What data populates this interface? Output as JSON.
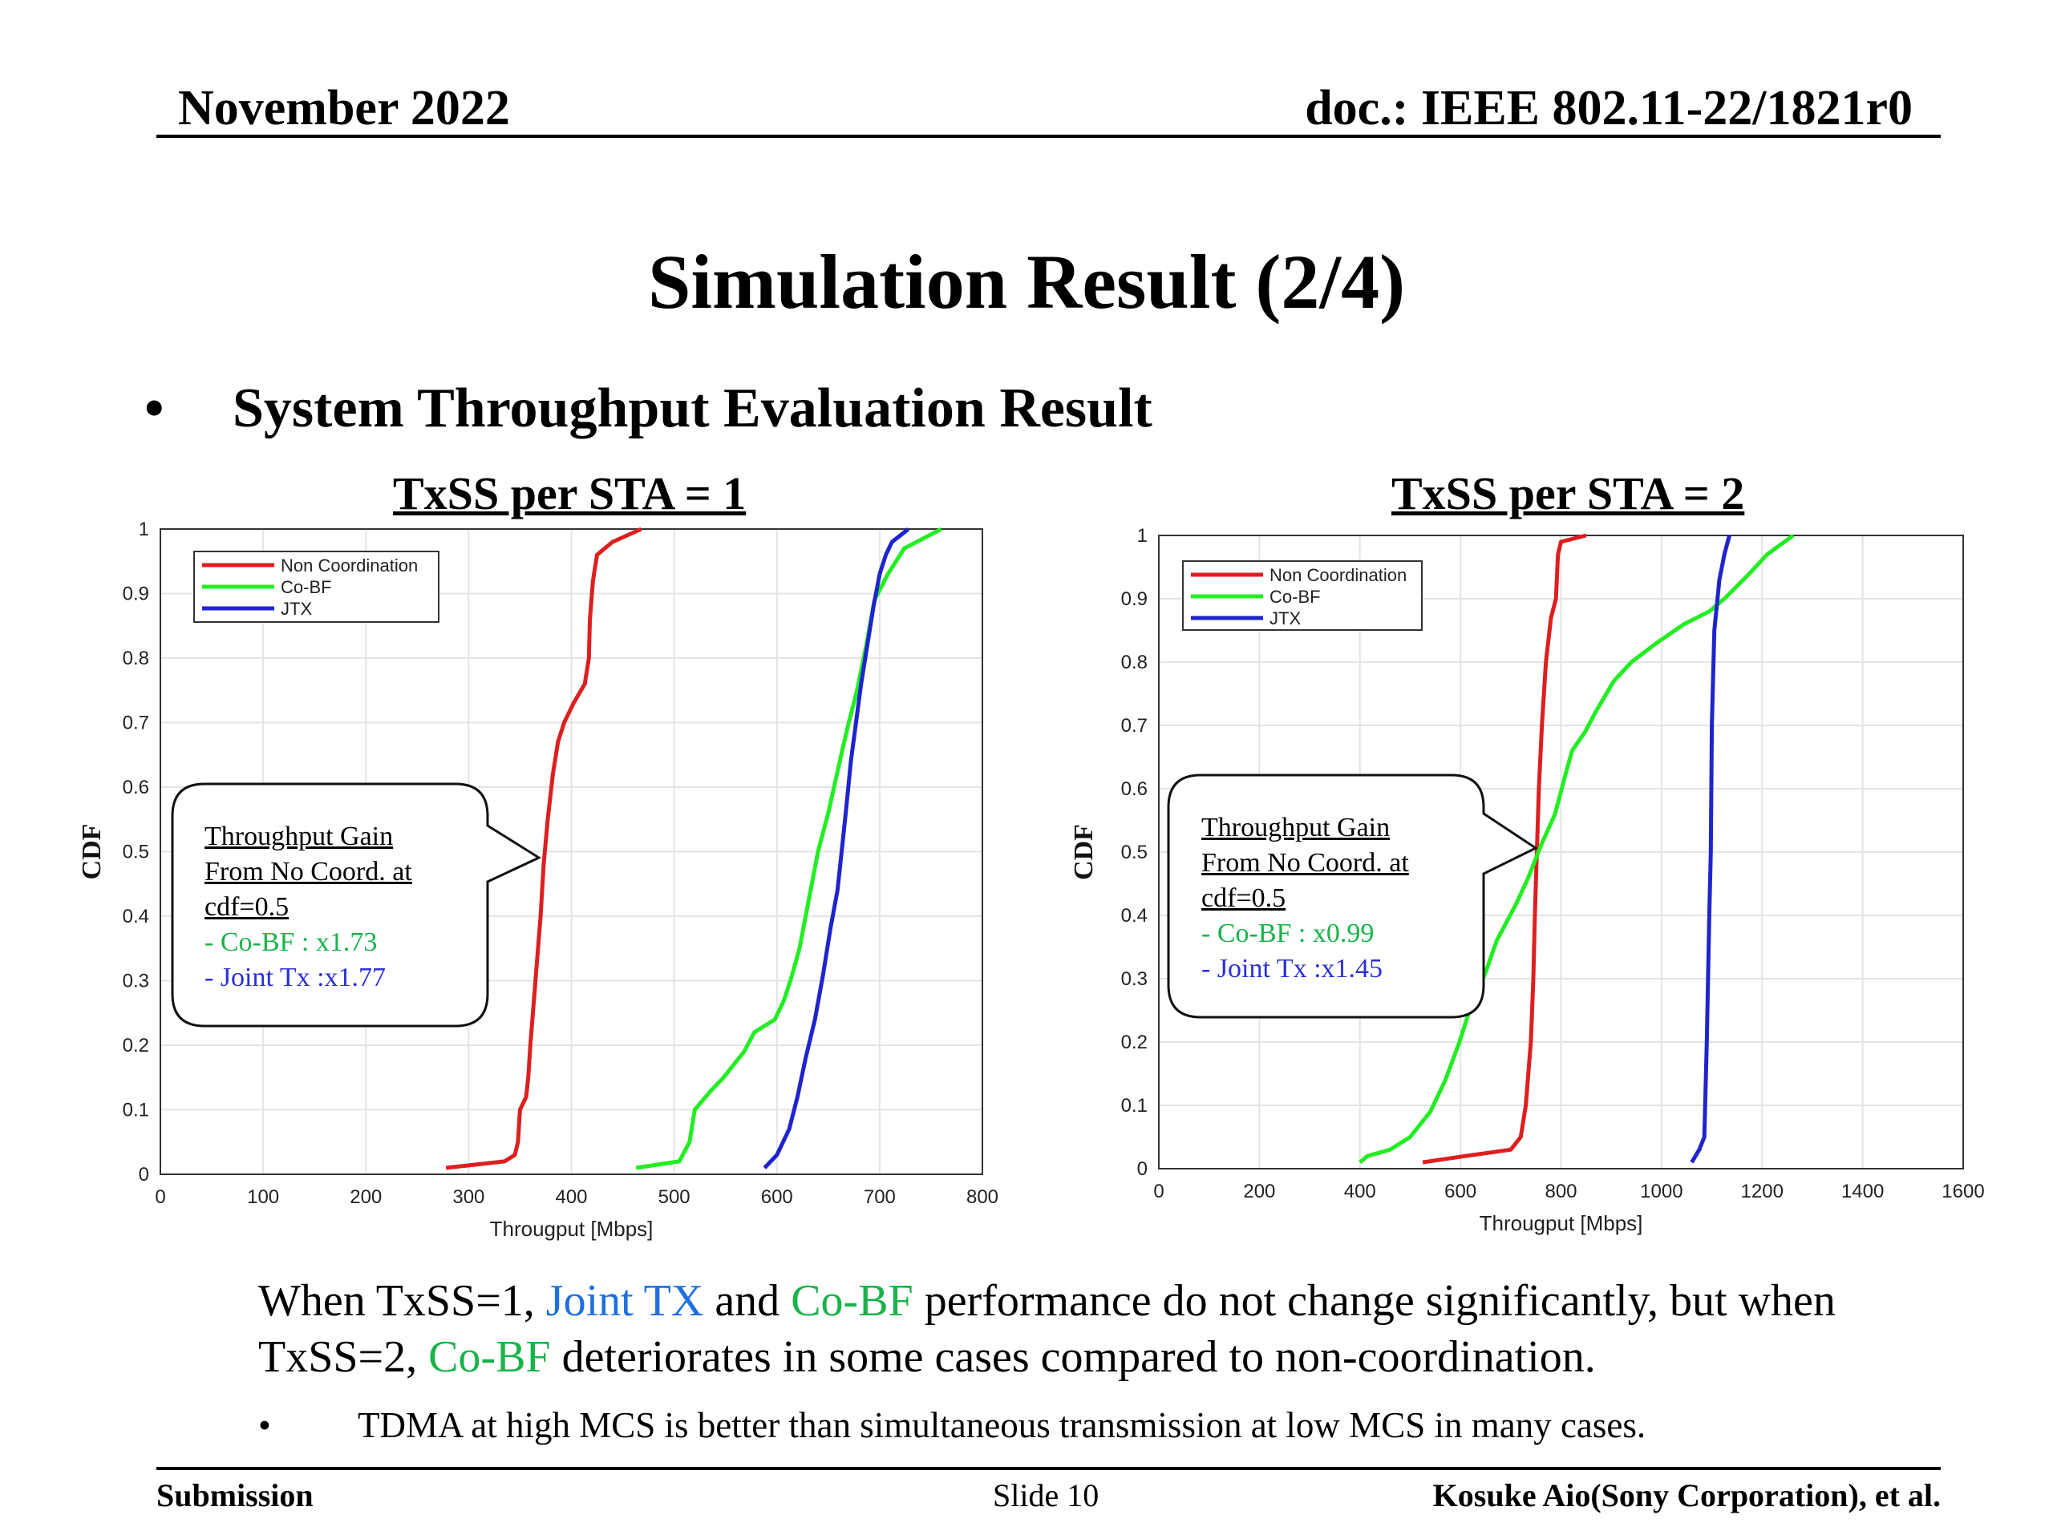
{
  "header": {
    "date": "November 2022",
    "doc": "doc.: IEEE 802.11-22/1821r0"
  },
  "title": "Simulation Result (2/4)",
  "bullet": {
    "glyph": "•",
    "text": "System Throughput Evaluation Result"
  },
  "chart_data": [
    {
      "type": "line",
      "title": "TxSS per STA  = 1",
      "xlabel": "Througput [Mbps]",
      "ylabel": "CDF",
      "xlim": [
        0,
        800
      ],
      "ylim": [
        0,
        1
      ],
      "xticks": [
        0,
        100,
        200,
        300,
        400,
        500,
        600,
        700,
        800
      ],
      "yticks": [
        0,
        0.1,
        0.2,
        0.3,
        0.4,
        0.5,
        0.6,
        0.7,
        0.8,
        0.9,
        1
      ],
      "grid": true,
      "legend": "top-left",
      "series": [
        {
          "name": "Non Coordination",
          "color": "#dd1f1f",
          "points": [
            [
              278,
              0.01
            ],
            [
              335,
              0.02
            ],
            [
              345,
              0.03
            ],
            [
              348,
              0.05
            ],
            [
              350,
              0.1
            ],
            [
              356,
              0.12
            ],
            [
              358,
              0.15
            ],
            [
              360,
              0.2
            ],
            [
              365,
              0.3
            ],
            [
              370,
              0.4
            ],
            [
              373,
              0.48
            ],
            [
              377,
              0.55
            ],
            [
              382,
              0.62
            ],
            [
              387,
              0.67
            ],
            [
              393,
              0.7
            ],
            [
              402,
              0.73
            ],
            [
              413,
              0.76
            ],
            [
              417,
              0.8
            ],
            [
              418,
              0.86
            ],
            [
              421,
              0.92
            ],
            [
              425,
              0.96
            ],
            [
              440,
              0.98
            ],
            [
              468,
              1.0
            ]
          ]
        },
        {
          "name": "Co-BF",
          "color": "#22ee22",
          "points": [
            [
              463,
              0.01
            ],
            [
              505,
              0.02
            ],
            [
              515,
              0.05
            ],
            [
              520,
              0.1
            ],
            [
              536,
              0.13
            ],
            [
              548,
              0.15
            ],
            [
              568,
              0.19
            ],
            [
              578,
              0.22
            ],
            [
              598,
              0.24
            ],
            [
              607,
              0.27
            ],
            [
              615,
              0.31
            ],
            [
              622,
              0.35
            ],
            [
              628,
              0.4
            ],
            [
              634,
              0.45
            ],
            [
              640,
              0.5
            ],
            [
              650,
              0.56
            ],
            [
              657,
              0.61
            ],
            [
              664,
              0.66
            ],
            [
              670,
              0.7
            ],
            [
              678,
              0.75
            ],
            [
              687,
              0.82
            ],
            [
              695,
              0.89
            ],
            [
              708,
              0.93
            ],
            [
              724,
              0.97
            ],
            [
              760,
              1.0
            ]
          ]
        },
        {
          "name": "JTX",
          "color": "#1f24cc",
          "points": [
            [
              588,
              0.01
            ],
            [
              600,
              0.03
            ],
            [
              612,
              0.07
            ],
            [
              620,
              0.12
            ],
            [
              628,
              0.18
            ],
            [
              637,
              0.24
            ],
            [
              645,
              0.31
            ],
            [
              652,
              0.38
            ],
            [
              659,
              0.44
            ],
            [
              663,
              0.5
            ],
            [
              667,
              0.56
            ],
            [
              672,
              0.64
            ],
            [
              677,
              0.7
            ],
            [
              682,
              0.76
            ],
            [
              688,
              0.82
            ],
            [
              694,
              0.88
            ],
            [
              700,
              0.93
            ],
            [
              706,
              0.96
            ],
            [
              712,
              0.98
            ],
            [
              728,
              1.0
            ]
          ]
        }
      ],
      "annotation": {
        "lines": [
          "Throughput  Gain",
          "From No Coord. at",
          "cdf=0.5"
        ],
        "cobf": "- Co-BF  : x1.73",
        "jtx": "- Joint Tx :x1.77"
      }
    },
    {
      "type": "line",
      "title": "TxSS per STA = 2",
      "xlabel": "Througput [Mbps]",
      "ylabel": "CDF",
      "xlim": [
        0,
        1600
      ],
      "ylim": [
        0,
        1
      ],
      "xticks": [
        0,
        200,
        400,
        600,
        800,
        1000,
        1200,
        1400,
        1600
      ],
      "yticks": [
        0,
        0.1,
        0.2,
        0.3,
        0.4,
        0.5,
        0.6,
        0.7,
        0.8,
        0.9,
        1
      ],
      "grid": true,
      "legend": "top-left",
      "series": [
        {
          "name": "Non Coordination",
          "color": "#dd1f1f",
          "points": [
            [
              525,
              0.01
            ],
            [
              610,
              0.02
            ],
            [
              700,
              0.03
            ],
            [
              720,
              0.05
            ],
            [
              730,
              0.1
            ],
            [
              740,
              0.2
            ],
            [
              745,
              0.3
            ],
            [
              748,
              0.4
            ],
            [
              752,
              0.5
            ],
            [
              756,
              0.6
            ],
            [
              762,
              0.7
            ],
            [
              770,
              0.8
            ],
            [
              780,
              0.87
            ],
            [
              790,
              0.9
            ],
            [
              794,
              0.97
            ],
            [
              800,
              0.99
            ],
            [
              850,
              1.0
            ]
          ]
        },
        {
          "name": "Co-BF",
          "color": "#22ee22",
          "points": [
            [
              400,
              0.01
            ],
            [
              415,
              0.02
            ],
            [
              460,
              0.03
            ],
            [
              500,
              0.05
            ],
            [
              540,
              0.09
            ],
            [
              570,
              0.14
            ],
            [
              598,
              0.2
            ],
            [
              622,
              0.26
            ],
            [
              650,
              0.31
            ],
            [
              672,
              0.36
            ],
            [
              692,
              0.39
            ],
            [
              712,
              0.42
            ],
            [
              735,
              0.46
            ],
            [
              760,
              0.51
            ],
            [
              788,
              0.56
            ],
            [
              808,
              0.62
            ],
            [
              822,
              0.66
            ],
            [
              848,
              0.69
            ],
            [
              868,
              0.72
            ],
            [
              905,
              0.77
            ],
            [
              940,
              0.8
            ],
            [
              990,
              0.83
            ],
            [
              1045,
              0.86
            ],
            [
              1095,
              0.88
            ],
            [
              1125,
              0.9
            ],
            [
              1175,
              0.94
            ],
            [
              1210,
              0.97
            ],
            [
              1262,
              1.0
            ]
          ]
        },
        {
          "name": "JTX",
          "color": "#1f24cc",
          "points": [
            [
              1060,
              0.01
            ],
            [
              1075,
              0.03
            ],
            [
              1085,
              0.05
            ],
            [
              1090,
              0.2
            ],
            [
              1095,
              0.4
            ],
            [
              1098,
              0.5
            ],
            [
              1100,
              0.7
            ],
            [
              1105,
              0.85
            ],
            [
              1115,
              0.93
            ],
            [
              1125,
              0.97
            ],
            [
              1135,
              1.0
            ]
          ]
        }
      ],
      "annotation": {
        "lines": [
          "Throughput  Gain",
          "From No Coord. at",
          "cdf=0.5"
        ],
        "cobf": "- Co-BF  : x0.99",
        "jtx": "- Joint Tx :x1.45"
      }
    }
  ],
  "summary": {
    "p1": "When TxSS=1, ",
    "joint_tx": "Joint TX",
    "p2": " and ",
    "cobf1": "Co-BF",
    "p3": " performance do not change significantly, but when TxSS=2, ",
    "cobf2": "Co-BF",
    "p4": " deteriorates in some cases compared to non-coordination."
  },
  "sub_bullet": {
    "glyph": "•",
    "text": "TDMA at high MCS is better than simultaneous transmission at low MCS in many cases."
  },
  "footer": {
    "left": "Submission",
    "center": "Slide 10",
    "right": "Kosuke Aio(Sony Corporation), et al."
  }
}
